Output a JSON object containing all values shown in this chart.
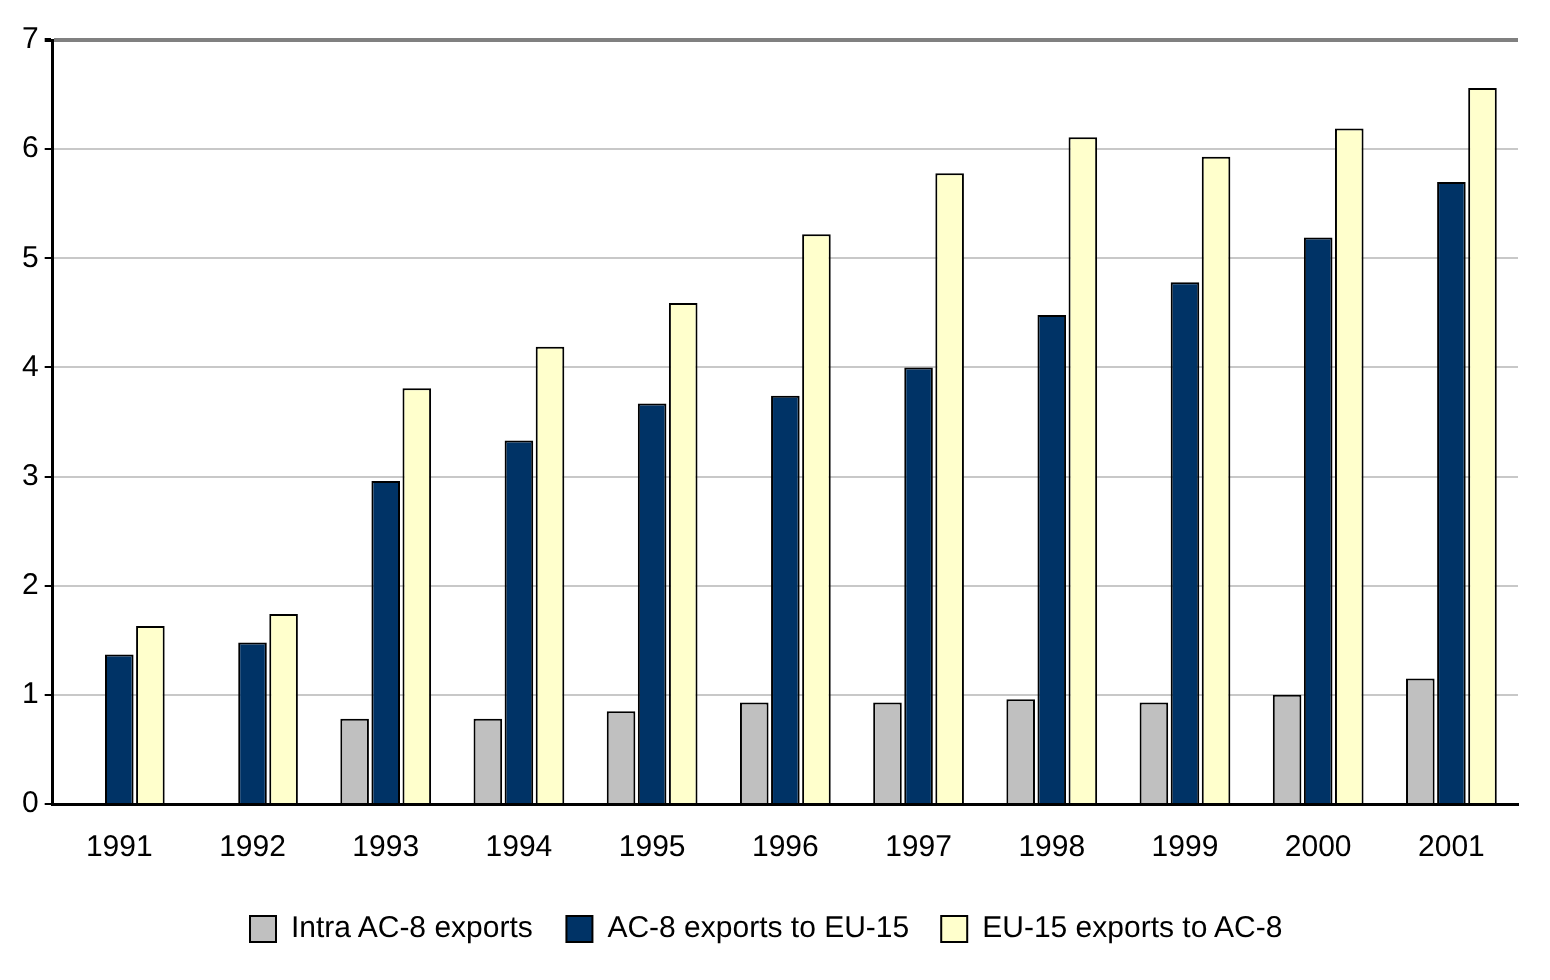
{
  "chart_data": {
    "type": "bar",
    "categories": [
      "1991",
      "1992",
      "1993",
      "1994",
      "1995",
      "1996",
      "1997",
      "1998",
      "1999",
      "2000",
      "2001"
    ],
    "series": [
      {
        "name": "Intra AC-8 exports",
        "color": "#c0c0c0",
        "values": [
          null,
          null,
          0.78,
          0.78,
          0.85,
          0.93,
          0.93,
          0.96,
          0.93,
          1.0,
          1.15
        ]
      },
      {
        "name": "AC-8 exports to EU-15",
        "color": "#003366",
        "values": [
          1.37,
          1.48,
          2.96,
          3.33,
          3.67,
          3.74,
          4.0,
          4.48,
          4.78,
          5.19,
          5.7
        ]
      },
      {
        "name": "EU-15 exports to AC-8",
        "color": "#ffffcc",
        "values": [
          1.63,
          1.74,
          3.81,
          4.19,
          4.59,
          5.22,
          5.78,
          6.11,
          5.93,
          6.19,
          6.56
        ]
      }
    ],
    "ylim": [
      0,
      7
    ],
    "yticks": [
      0,
      1,
      2,
      3,
      4,
      5,
      6,
      7
    ],
    "grid": "y",
    "legend": "bottom"
  }
}
